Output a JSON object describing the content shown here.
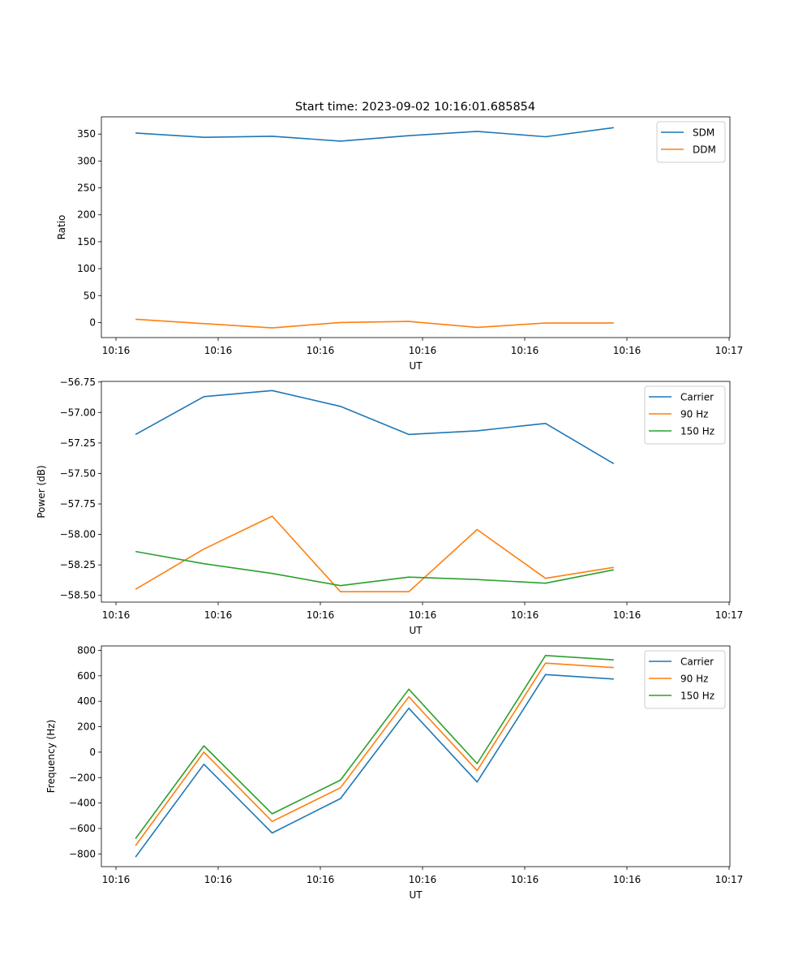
{
  "figure": {
    "title": "Start time: 2023-09-02 10:16:01.685854"
  },
  "chart_data": [
    {
      "type": "line",
      "title": "Start time: 2023-09-02 10:16:01.685854",
      "xlabel": "UT",
      "ylabel": "Ratio",
      "x_ticks": [
        "10:16",
        "10:16",
        "10:16",
        "10:16",
        "10:16",
        "10:16",
        "10:17"
      ],
      "y_ticks": [
        0,
        50,
        100,
        150,
        200,
        250,
        300,
        350
      ],
      "y_tick_labels": [
        "0",
        "50",
        "100",
        "150",
        "200",
        "250",
        "300",
        "350"
      ],
      "xlim": [
        -0.5,
        8.7
      ],
      "ylim": [
        -28,
        382
      ],
      "x": [
        0,
        1,
        2,
        3,
        4,
        5,
        6,
        7
      ],
      "series": [
        {
          "name": "SDM",
          "color": "#1f77b4",
          "values": [
            352,
            344,
            346,
            337,
            347,
            355,
            345,
            362
          ]
        },
        {
          "name": "DDM",
          "color": "#ff7f0e",
          "values": [
            6,
            -2,
            -10,
            0,
            2,
            -9,
            -1,
            -1
          ]
        }
      ],
      "legend": "top-right"
    },
    {
      "type": "line",
      "title": "",
      "xlabel": "UT",
      "ylabel": "Power (dB)",
      "x_ticks": [
        "10:16",
        "10:16",
        "10:16",
        "10:16",
        "10:16",
        "10:16",
        "10:17"
      ],
      "y_ticks": [
        -58.5,
        -58.25,
        -58.0,
        -57.75,
        -57.5,
        -57.25,
        -57.0,
        -56.75
      ],
      "y_tick_labels": [
        "−58.50",
        "−58.25",
        "−58.00",
        "−57.75",
        "−57.50",
        "−57.25",
        "−57.00",
        "−56.75"
      ],
      "xlim": [
        -0.5,
        8.7
      ],
      "ylim": [
        -58.555,
        -56.745
      ],
      "x": [
        0,
        1,
        2,
        3,
        4,
        5,
        6,
        7
      ],
      "series": [
        {
          "name": "Carrier",
          "color": "#1f77b4",
          "values": [
            -57.18,
            -56.87,
            -56.82,
            -56.95,
            -57.18,
            -57.15,
            -57.09,
            -57.42
          ]
        },
        {
          "name": "90 Hz",
          "color": "#ff7f0e",
          "values": [
            -58.45,
            -58.12,
            -57.85,
            -58.47,
            -58.47,
            -57.96,
            -58.36,
            -58.27
          ]
        },
        {
          "name": "150 Hz",
          "color": "#2ca02c",
          "values": [
            -58.14,
            -58.24,
            -58.32,
            -58.42,
            -58.35,
            -58.37,
            -58.4,
            -58.29
          ]
        }
      ],
      "legend": "top-right"
    },
    {
      "type": "line",
      "title": "",
      "xlabel": "UT",
      "ylabel": "Frequency (Hz)",
      "x_ticks": [
        "10:16",
        "10:16",
        "10:16",
        "10:16",
        "10:16",
        "10:16",
        "10:17"
      ],
      "y_ticks": [
        -800,
        -600,
        -400,
        -200,
        0,
        200,
        400,
        600,
        800
      ],
      "y_tick_labels": [
        "−800",
        "−600",
        "−400",
        "−200",
        "0",
        "200",
        "400",
        "600",
        "800"
      ],
      "xlim": [
        -0.5,
        8.7
      ],
      "ylim": [
        -900,
        835
      ],
      "x": [
        0,
        1,
        2,
        3,
        4,
        5,
        6,
        7
      ],
      "series": [
        {
          "name": "Carrier",
          "color": "#1f77b4",
          "values": [
            -825,
            -95,
            -635,
            -365,
            345,
            -235,
            610,
            575
          ]
        },
        {
          "name": "90 Hz",
          "color": "#ff7f0e",
          "values": [
            -735,
            0,
            -545,
            -280,
            435,
            -145,
            700,
            665
          ]
        },
        {
          "name": "150 Hz",
          "color": "#2ca02c",
          "values": [
            -680,
            50,
            -485,
            -220,
            495,
            -90,
            760,
            725
          ]
        }
      ],
      "legend": "top-right"
    }
  ]
}
